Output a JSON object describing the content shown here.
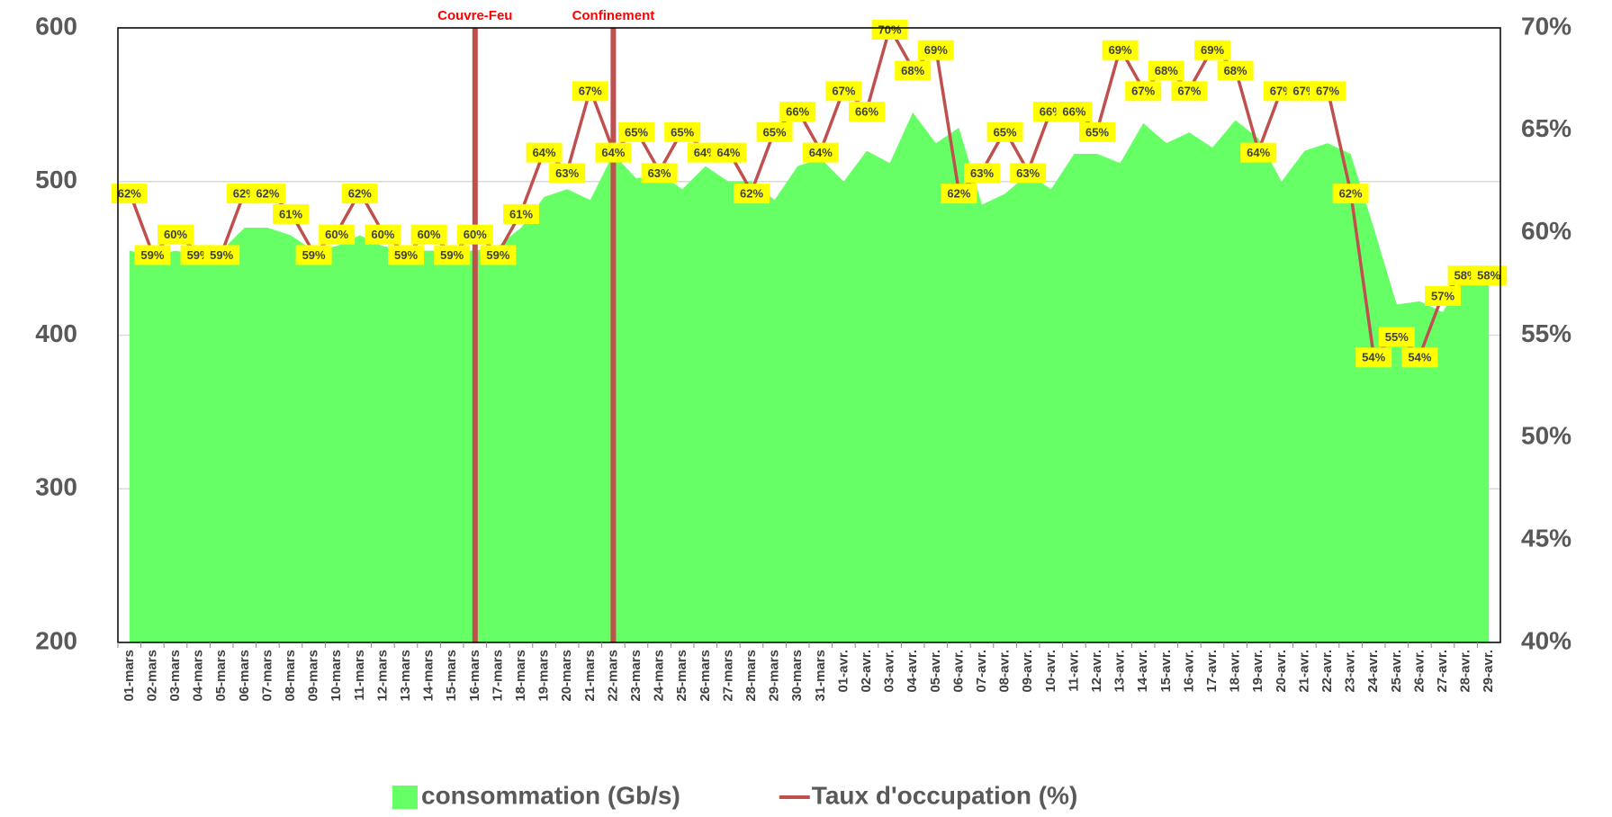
{
  "chart_data": {
    "type": "combo",
    "categories": [
      "01-mars",
      "02-mars",
      "03-mars",
      "04-mars",
      "05-mars",
      "06-mars",
      "07-mars",
      "08-mars",
      "09-mars",
      "10-mars",
      "11-mars",
      "12-mars",
      "13-mars",
      "14-mars",
      "15-mars",
      "16-mars",
      "17-mars",
      "18-mars",
      "19-mars",
      "20-mars",
      "21-mars",
      "22-mars",
      "23-mars",
      "24-mars",
      "25-mars",
      "26-mars",
      "27-mars",
      "28-mars",
      "29-mars",
      "30-mars",
      "31-mars",
      "01-avr.",
      "02-avr.",
      "03-avr.",
      "04-avr.",
      "05-avr.",
      "06-avr.",
      "07-avr.",
      "08-avr.",
      "09-avr.",
      "10-avr.",
      "11-avr.",
      "12-avr.",
      "13-avr.",
      "14-avr.",
      "15-avr.",
      "16-avr.",
      "17-avr.",
      "18-avr.",
      "19-avr.",
      "20-avr.",
      "21-avr.",
      "22-avr.",
      "23-avr.",
      "24-avr.",
      "25-avr.",
      "26-avr.",
      "27-avr.",
      "28-avr.",
      "29-avr."
    ],
    "series": [
      {
        "name": "consommation (Gb/s)",
        "type": "area",
        "color": "#66ff66",
        "values": [
          455,
          452,
          455,
          452,
          455,
          470,
          470,
          465,
          455,
          458,
          465,
          458,
          455,
          455,
          455,
          455,
          458,
          470,
          490,
          495,
          488,
          518,
          502,
          505,
          495,
          510,
          500,
          500,
          488,
          510,
          515,
          500,
          520,
          512,
          545,
          525,
          535,
          485,
          492,
          505,
          495,
          518,
          518,
          512,
          538,
          525,
          532,
          522,
          540,
          528,
          500,
          520,
          525,
          518,
          470,
          420,
          422,
          415,
          440,
          442
        ]
      },
      {
        "name": "Taux d'occupation (%)",
        "type": "line",
        "axis": "y2",
        "color": "#c0504d",
        "label_color": "#ffff00",
        "values": [
          62,
          59,
          60,
          59,
          59,
          62,
          62,
          61,
          59,
          60,
          62,
          60,
          59,
          60,
          59,
          60,
          59,
          61,
          64,
          63,
          67,
          64,
          65,
          63,
          65,
          64,
          64,
          62,
          65,
          66,
          64,
          67,
          66,
          70,
          68,
          69,
          62,
          63,
          65,
          63,
          66,
          66,
          65,
          69,
          67,
          68,
          67,
          69,
          68,
          64,
          67,
          67,
          67,
          62,
          54,
          55,
          54,
          57,
          58,
          58
        ],
        "value_labels": [
          "62%",
          "59%",
          "60%",
          "59%",
          "59%",
          "62%",
          "62%",
          "61%",
          "59%",
          "60%",
          "62%",
          "60%",
          "59%",
          "60%",
          "59%",
          "60%",
          "59%",
          "61%",
          "64%",
          "63%",
          "67%",
          "64%",
          "65%",
          "63%",
          "65%",
          "64%",
          "64%",
          "62%",
          "65%",
          "66%",
          "64%",
          "67%",
          "66%",
          "70%",
          "68%",
          "69%",
          "62%",
          "63%",
          "65%",
          "63%",
          "66%",
          "66%",
          "65%",
          "69%",
          "67%",
          "68%",
          "67%",
          "69%",
          "68%",
          "64%",
          "67%",
          "67%",
          "67%",
          "62%",
          "54%",
          "55%",
          "54%",
          "57%",
          "58%",
          "58%"
        ]
      }
    ],
    "ylim": [
      200,
      600
    ],
    "yticks": [
      200,
      300,
      400,
      500,
      600
    ],
    "y2lim": [
      40,
      70
    ],
    "y2ticks": [
      {
        "value": 40,
        "label": "40%"
      },
      {
        "value": 45,
        "label": "45%"
      },
      {
        "value": 50,
        "label": "50%"
      },
      {
        "value": 55,
        "label": "55%"
      },
      {
        "value": 60,
        "label": "60%"
      },
      {
        "value": 65,
        "label": "65%"
      },
      {
        "value": 70,
        "label": "70%"
      }
    ],
    "grid": true,
    "legend": "bottom",
    "annotations": [
      {
        "text": "Couvre-Feu",
        "at": "16-mars",
        "color": "#ff0000",
        "line_color": "#c0504d"
      },
      {
        "text": "Confinement",
        "at": "22-mars",
        "color": "#ff0000",
        "line_color": "#c0504d"
      }
    ]
  }
}
